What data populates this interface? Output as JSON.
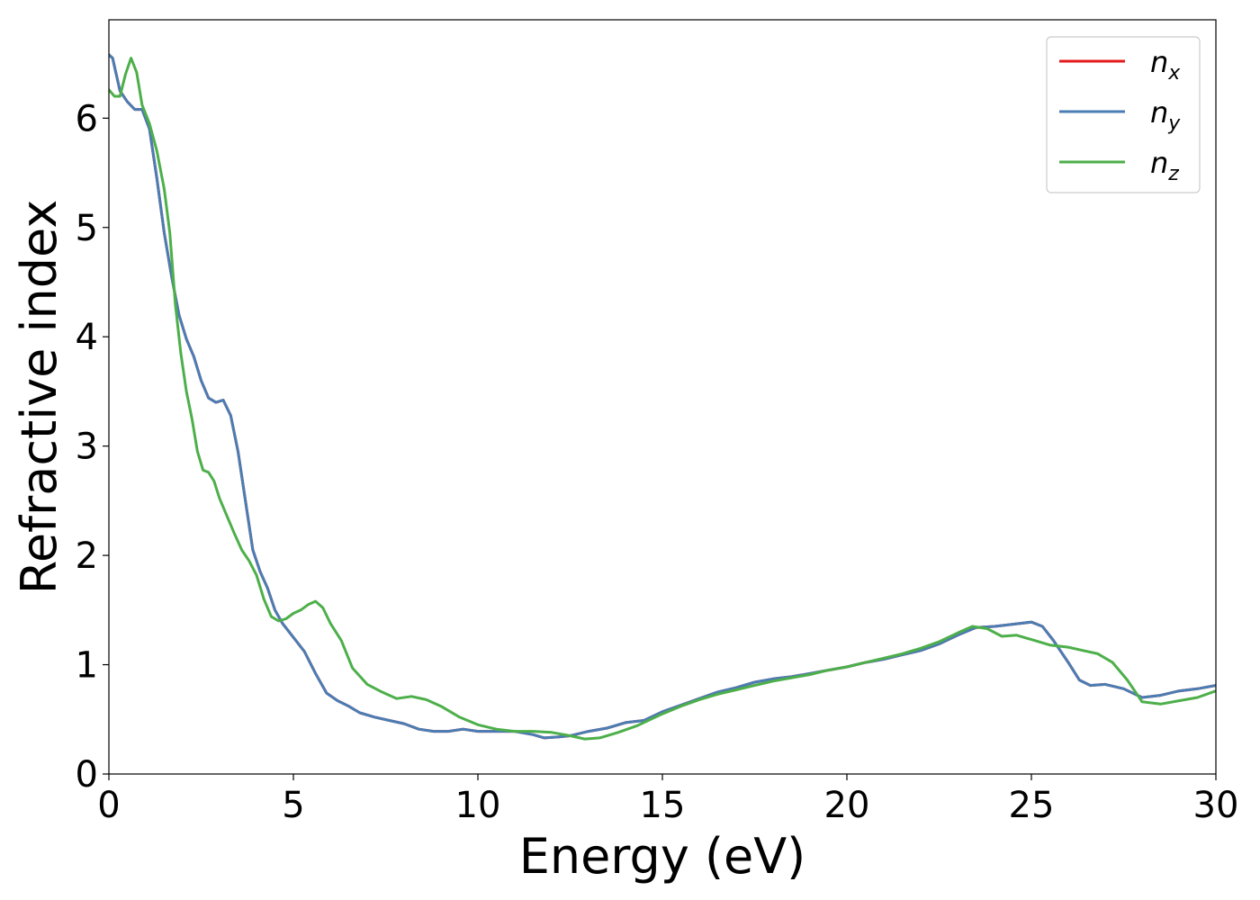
{
  "chart_data": {
    "type": "line",
    "xlabel": "Energy (eV)",
    "ylabel": "Refractive index",
    "xlim": [
      0,
      30
    ],
    "ylim": [
      0,
      6.9
    ],
    "xticks": [
      0,
      5,
      10,
      15,
      20,
      25,
      30
    ],
    "xtick_labels": [
      "0",
      "5",
      "10",
      "15",
      "20",
      "25",
      "30"
    ],
    "yticks": [
      0,
      1,
      2,
      3,
      4,
      5,
      6
    ],
    "ytick_labels": [
      "0",
      "1",
      "2",
      "3",
      "4",
      "5",
      "6"
    ],
    "grid": false,
    "legend_position": "top-right",
    "legend": [
      {
        "base": "n",
        "sub": "x"
      },
      {
        "base": "n",
        "sub": "y"
      },
      {
        "base": "n",
        "sub": "z"
      }
    ],
    "series": [
      {
        "name": "n_x",
        "color": "#e41a1c",
        "x": [
          0,
          0.1,
          0.3,
          0.5,
          0.7,
          0.9,
          1.1,
          1.3,
          1.5,
          1.7,
          1.9,
          2.1,
          2.3,
          2.5,
          2.7,
          2.9,
          3.1,
          3.3,
          3.5,
          3.7,
          3.9,
          4.1,
          4.3,
          4.5,
          4.7,
          5.0,
          5.3,
          5.6,
          5.9,
          6.2,
          6.5,
          6.8,
          7.2,
          7.6,
          8.0,
          8.4,
          8.8,
          9.2,
          9.6,
          10.0,
          10.5,
          11.0,
          11.5,
          11.8,
          12.2,
          12.5,
          13.0,
          13.5,
          14.0,
          14.5,
          15.0,
          15.5,
          16.0,
          16.5,
          17.0,
          17.5,
          18.0,
          18.5,
          19.0,
          19.5,
          20.0,
          20.5,
          21.0,
          21.5,
          22.0,
          22.5,
          23.0,
          23.5,
          24.0,
          24.5,
          25.0,
          25.3,
          25.6,
          26.0,
          26.3,
          26.6,
          27.0,
          27.5,
          28.0,
          28.5,
          29.0,
          29.5,
          30.0
        ],
        "y": [
          6.58,
          6.55,
          6.25,
          6.15,
          6.08,
          6.08,
          5.9,
          5.45,
          4.95,
          4.55,
          4.2,
          3.98,
          3.82,
          3.6,
          3.44,
          3.4,
          3.42,
          3.28,
          2.95,
          2.5,
          2.05,
          1.85,
          1.7,
          1.5,
          1.38,
          1.25,
          1.12,
          0.92,
          0.74,
          0.67,
          0.62,
          0.56,
          0.52,
          0.49,
          0.46,
          0.41,
          0.39,
          0.39,
          0.41,
          0.39,
          0.39,
          0.39,
          0.36,
          0.33,
          0.34,
          0.35,
          0.39,
          0.42,
          0.47,
          0.49,
          0.57,
          0.63,
          0.69,
          0.75,
          0.79,
          0.84,
          0.87,
          0.89,
          0.92,
          0.95,
          0.98,
          1.02,
          1.05,
          1.09,
          1.13,
          1.19,
          1.27,
          1.34,
          1.35,
          1.37,
          1.39,
          1.35,
          1.22,
          1.02,
          0.86,
          0.81,
          0.82,
          0.78,
          0.7,
          0.72,
          0.76,
          0.78,
          0.81
        ]
      },
      {
        "name": "n_y",
        "color": "#4a7db3",
        "x": [
          0,
          0.1,
          0.3,
          0.5,
          0.7,
          0.9,
          1.1,
          1.3,
          1.5,
          1.7,
          1.9,
          2.1,
          2.3,
          2.5,
          2.7,
          2.9,
          3.1,
          3.3,
          3.5,
          3.7,
          3.9,
          4.1,
          4.3,
          4.5,
          4.7,
          5.0,
          5.3,
          5.6,
          5.9,
          6.2,
          6.5,
          6.8,
          7.2,
          7.6,
          8.0,
          8.4,
          8.8,
          9.2,
          9.6,
          10.0,
          10.5,
          11.0,
          11.5,
          11.8,
          12.2,
          12.5,
          13.0,
          13.5,
          14.0,
          14.5,
          15.0,
          15.5,
          16.0,
          16.5,
          17.0,
          17.5,
          18.0,
          18.5,
          19.0,
          19.5,
          20.0,
          20.5,
          21.0,
          21.5,
          22.0,
          22.5,
          23.0,
          23.5,
          24.0,
          24.5,
          25.0,
          25.3,
          25.6,
          26.0,
          26.3,
          26.6,
          27.0,
          27.5,
          28.0,
          28.5,
          29.0,
          29.5,
          30.0
        ],
        "y": [
          6.58,
          6.55,
          6.25,
          6.15,
          6.08,
          6.08,
          5.9,
          5.45,
          4.95,
          4.55,
          4.2,
          3.98,
          3.82,
          3.6,
          3.44,
          3.4,
          3.42,
          3.28,
          2.95,
          2.5,
          2.05,
          1.85,
          1.7,
          1.5,
          1.38,
          1.25,
          1.12,
          0.92,
          0.74,
          0.67,
          0.62,
          0.56,
          0.52,
          0.49,
          0.46,
          0.41,
          0.39,
          0.39,
          0.41,
          0.39,
          0.39,
          0.39,
          0.36,
          0.33,
          0.34,
          0.35,
          0.39,
          0.42,
          0.47,
          0.49,
          0.57,
          0.63,
          0.69,
          0.75,
          0.79,
          0.84,
          0.87,
          0.89,
          0.92,
          0.95,
          0.98,
          1.02,
          1.05,
          1.09,
          1.13,
          1.19,
          1.27,
          1.34,
          1.35,
          1.37,
          1.39,
          1.35,
          1.22,
          1.02,
          0.86,
          0.81,
          0.82,
          0.78,
          0.7,
          0.72,
          0.76,
          0.78,
          0.81
        ]
      },
      {
        "name": "n_z",
        "color": "#4daf4a",
        "x": [
          0,
          0.15,
          0.3,
          0.45,
          0.6,
          0.75,
          0.9,
          1.1,
          1.3,
          1.5,
          1.65,
          1.8,
          1.95,
          2.1,
          2.25,
          2.4,
          2.55,
          2.7,
          2.85,
          3.0,
          3.2,
          3.4,
          3.6,
          3.8,
          4.0,
          4.2,
          4.4,
          4.6,
          4.8,
          5.0,
          5.2,
          5.4,
          5.6,
          5.8,
          6.0,
          6.3,
          6.6,
          7.0,
          7.4,
          7.8,
          8.2,
          8.6,
          9.0,
          9.5,
          10.0,
          10.5,
          11.0,
          11.5,
          12.0,
          12.5,
          12.9,
          13.3,
          13.8,
          14.3,
          15.0,
          15.5,
          16.0,
          16.5,
          17.0,
          17.5,
          18.0,
          18.5,
          19.0,
          19.5,
          20.0,
          20.5,
          21.0,
          21.5,
          22.0,
          22.5,
          23.0,
          23.4,
          23.8,
          24.2,
          24.6,
          25.0,
          25.5,
          26.0,
          26.4,
          26.8,
          27.2,
          27.6,
          28.0,
          28.5,
          29.0,
          29.5,
          30.0
        ],
        "y": [
          6.26,
          6.2,
          6.2,
          6.4,
          6.55,
          6.42,
          6.12,
          5.95,
          5.7,
          5.35,
          4.95,
          4.3,
          3.85,
          3.5,
          3.25,
          2.95,
          2.78,
          2.76,
          2.68,
          2.52,
          2.36,
          2.2,
          2.05,
          1.95,
          1.82,
          1.6,
          1.44,
          1.4,
          1.42,
          1.47,
          1.5,
          1.55,
          1.58,
          1.52,
          1.38,
          1.22,
          0.97,
          0.82,
          0.75,
          0.69,
          0.71,
          0.68,
          0.62,
          0.52,
          0.45,
          0.41,
          0.39,
          0.39,
          0.38,
          0.35,
          0.32,
          0.33,
          0.38,
          0.44,
          0.55,
          0.62,
          0.68,
          0.73,
          0.77,
          0.81,
          0.85,
          0.88,
          0.91,
          0.95,
          0.98,
          1.02,
          1.06,
          1.1,
          1.15,
          1.21,
          1.29,
          1.35,
          1.33,
          1.26,
          1.27,
          1.23,
          1.18,
          1.16,
          1.13,
          1.1,
          1.02,
          0.86,
          0.66,
          0.64,
          0.67,
          0.7,
          0.76
        ]
      }
    ]
  }
}
